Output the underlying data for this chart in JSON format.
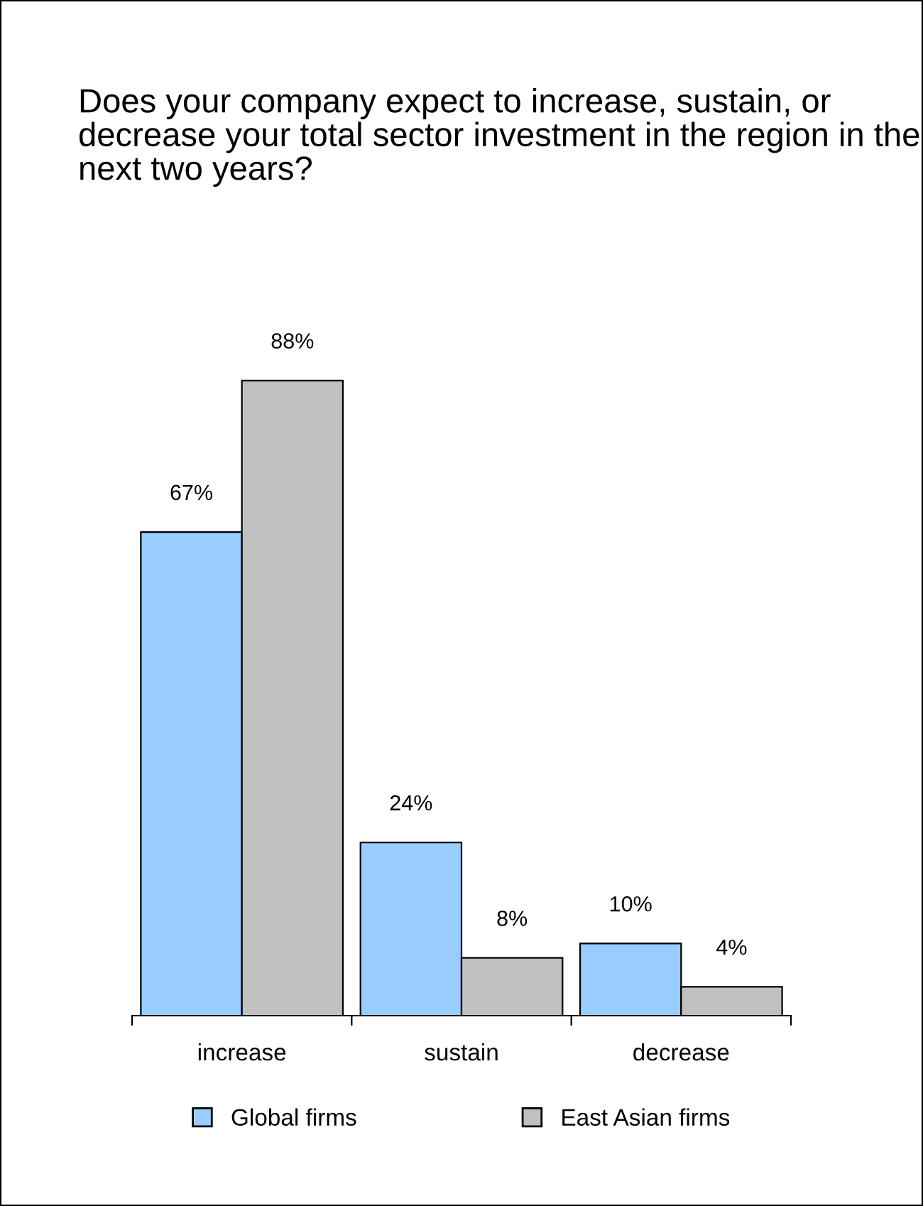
{
  "chart_data": {
    "type": "bar",
    "title": "Does your company expect to increase, sustain, or decrease your total sector investment in the region in the next two years?",
    "categories": [
      "increase",
      "sustain",
      "decrease"
    ],
    "series": [
      {
        "name": "Global firms",
        "color": "#99ccff",
        "values": [
          67,
          24,
          10
        ],
        "value_labels": [
          "67%",
          "24%",
          "10%"
        ]
      },
      {
        "name": "East Asian firms",
        "color": "#c0c0c0",
        "values": [
          88,
          8,
          4
        ],
        "value_labels": [
          "88%",
          "8%",
          "4%"
        ]
      }
    ],
    "legend": "bottom",
    "grid": false
  }
}
